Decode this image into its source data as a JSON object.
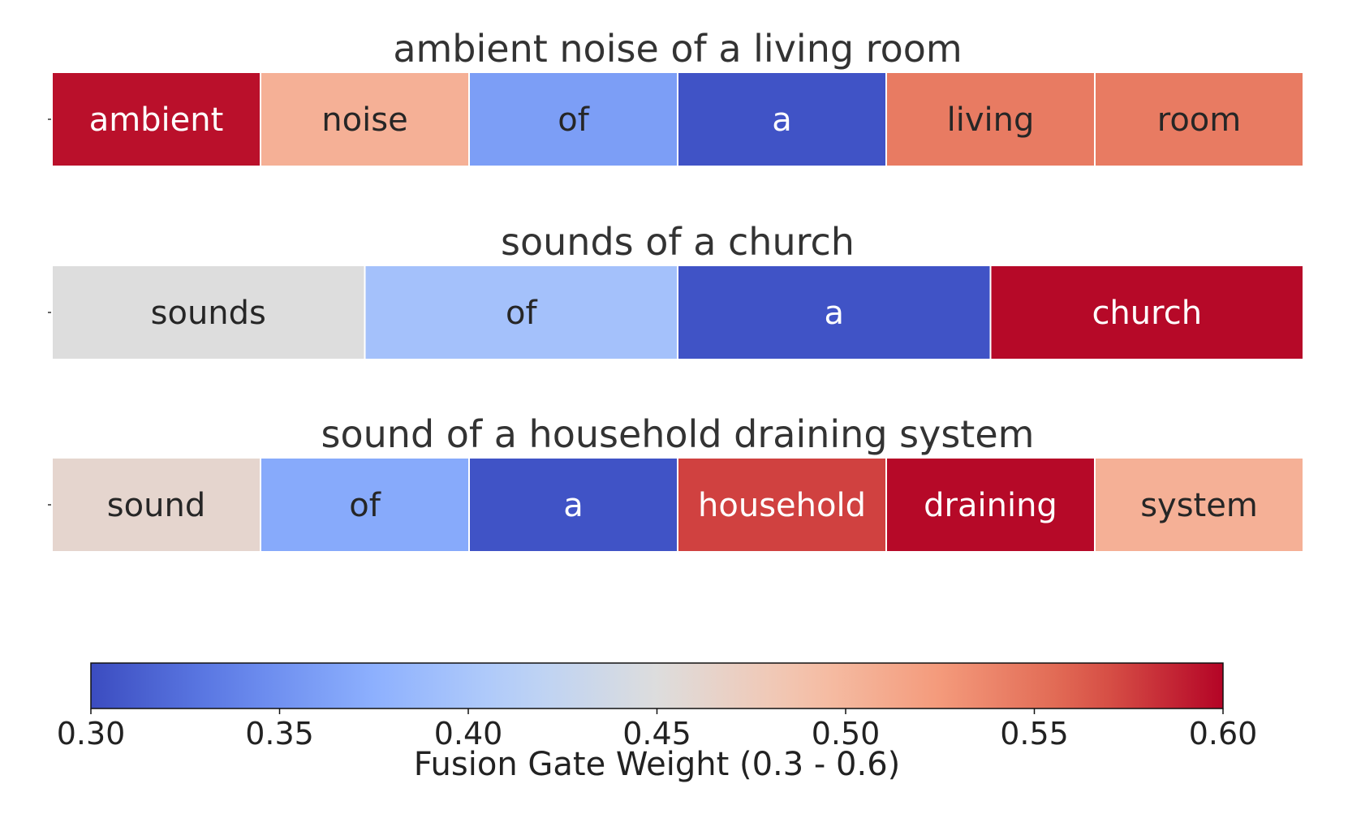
{
  "chart_data": {
    "type": "heatmap",
    "colormap": "coolwarm",
    "vmin": 0.3,
    "vmax": 0.6,
    "rows": [
      {
        "title": "ambient noise of a living room",
        "tokens": [
          "ambient",
          "noise",
          "of",
          "a",
          "living",
          "room"
        ],
        "values": [
          0.595,
          0.505,
          0.36,
          0.305,
          0.545,
          0.545
        ]
      },
      {
        "title": "sounds of a church",
        "tokens": [
          "sounds",
          "of",
          "a",
          "church"
        ],
        "values": [
          0.45,
          0.395,
          0.305,
          0.598
        ]
      },
      {
        "title": "sound of a household draining system",
        "tokens": [
          "sound",
          "of",
          "a",
          "household",
          "draining",
          "system"
        ],
        "values": [
          0.462,
          0.37,
          0.305,
          0.575,
          0.598,
          0.505
        ]
      }
    ],
    "colorbar": {
      "label": "Fusion Gate Weight (0.3 - 0.6)",
      "ticks": [
        "0.30",
        "0.35",
        "0.40",
        "0.45",
        "0.50",
        "0.55",
        "0.60"
      ],
      "tick_values": [
        0.3,
        0.35,
        0.4,
        0.45,
        0.5,
        0.55,
        0.6
      ]
    }
  }
}
